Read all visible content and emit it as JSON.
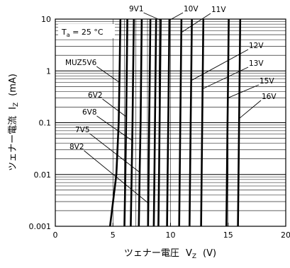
{
  "chart_data": {
    "type": "line",
    "x_axis": {
      "label": "ツェナー電圧",
      "symbol": "V",
      "symbol_sub": "Z",
      "unit": "(V)",
      "range": [
        0,
        20
      ],
      "ticks": [
        "0",
        "5",
        "10",
        "15",
        "20"
      ]
    },
    "y_axis": {
      "label": "ツェナー電流",
      "symbol": "I",
      "symbol_sub": "Z",
      "unit": "(mA)",
      "scale": "log",
      "range": [
        0.001,
        10
      ],
      "ticks": [
        "0.001",
        "0.01",
        "0.1",
        "1",
        "10"
      ]
    },
    "condition": {
      "prefix": "T",
      "sub": "a",
      "text": " = 25 °C"
    },
    "series": [
      {
        "name": "MUZ5V6",
        "points": [
          [
            4.75,
            0.001
          ],
          [
            5.3,
            0.01
          ],
          [
            5.5,
            0.1
          ],
          [
            5.58,
            1
          ],
          [
            5.65,
            10
          ]
        ]
      },
      {
        "name": "6V2",
        "points": [
          [
            6.0,
            0.001
          ],
          [
            6.08,
            0.01
          ],
          [
            6.15,
            0.1
          ],
          [
            6.2,
            1
          ],
          [
            6.25,
            10
          ]
        ]
      },
      {
        "name": "6V8",
        "points": [
          [
            6.55,
            0.001
          ],
          [
            6.63,
            0.01
          ],
          [
            6.7,
            0.1
          ],
          [
            6.76,
            1
          ],
          [
            6.82,
            10
          ]
        ]
      },
      {
        "name": "7V5",
        "points": [
          [
            7.25,
            0.001
          ],
          [
            7.32,
            0.01
          ],
          [
            7.4,
            0.1
          ],
          [
            7.45,
            1
          ],
          [
            7.5,
            10
          ]
        ]
      },
      {
        "name": "8V2",
        "points": [
          [
            8.05,
            0.001
          ],
          [
            8.1,
            0.01
          ],
          [
            8.15,
            0.1
          ],
          [
            8.2,
            1
          ],
          [
            8.25,
            10
          ]
        ]
      },
      {
        "name": "",
        "points": [
          [
            8.55,
            0.001
          ],
          [
            8.6,
            0.01
          ],
          [
            8.65,
            0.1
          ],
          [
            8.7,
            1
          ],
          [
            8.75,
            10
          ]
        ]
      },
      {
        "name": "9V1",
        "points": [
          [
            8.95,
            0.001
          ],
          [
            9.0,
            0.01
          ],
          [
            9.05,
            0.1
          ],
          [
            9.1,
            1
          ],
          [
            9.15,
            10
          ]
        ]
      },
      {
        "name": "10V",
        "points": [
          [
            9.7,
            0.001
          ],
          [
            9.75,
            0.01
          ],
          [
            9.8,
            0.1
          ],
          [
            9.85,
            1
          ],
          [
            9.9,
            10
          ]
        ]
      },
      {
        "name": "11V",
        "points": [
          [
            10.75,
            0.001
          ],
          [
            10.8,
            0.01
          ],
          [
            10.85,
            0.1
          ],
          [
            10.9,
            1
          ],
          [
            10.95,
            10
          ]
        ]
      },
      {
        "name": "12V",
        "points": [
          [
            11.65,
            0.001
          ],
          [
            11.7,
            0.01
          ],
          [
            11.75,
            0.1
          ],
          [
            11.8,
            1
          ],
          [
            11.85,
            10
          ]
        ]
      },
      {
        "name": "13V",
        "points": [
          [
            12.65,
            0.001
          ],
          [
            12.7,
            0.01
          ],
          [
            12.75,
            0.1
          ],
          [
            12.8,
            1
          ],
          [
            12.85,
            10
          ]
        ]
      },
      {
        "name": "15V",
        "points": [
          [
            14.85,
            0.001
          ],
          [
            14.9,
            0.01
          ],
          [
            14.95,
            0.1
          ],
          [
            15.0,
            1
          ],
          [
            15.05,
            10
          ]
        ]
      },
      {
        "name": "16V",
        "points": [
          [
            15.85,
            0.001
          ],
          [
            15.9,
            0.01
          ],
          [
            15.95,
            0.1
          ],
          [
            16.0,
            1
          ],
          [
            16.05,
            10
          ]
        ]
      }
    ],
    "callouts": [
      {
        "series": "MUZ5V6",
        "text": "MUZ5V6",
        "at": [
          5.55,
          0.6
        ]
      },
      {
        "series": "6V2",
        "text": "6V2",
        "at": [
          6.17,
          0.13
        ]
      },
      {
        "series": "6V8",
        "text": "6V8",
        "at": [
          6.7,
          0.045
        ]
      },
      {
        "series": "7V5",
        "text": "7V5",
        "at": [
          7.38,
          0.011
        ]
      },
      {
        "series": "8V2",
        "text": "8V2",
        "at": [
          8.12,
          0.0028
        ]
      },
      {
        "series": "9V1",
        "text": "9V1",
        "at": [
          9.1,
          9.5
        ]
      },
      {
        "series": "10V",
        "text": "10V",
        "at": [
          9.85,
          9.5
        ]
      },
      {
        "series": "11V",
        "text": "11V",
        "at": [
          10.9,
          5.5
        ]
      },
      {
        "series": "12V",
        "text": "12V",
        "at": [
          11.8,
          0.65
        ]
      },
      {
        "series": "13V",
        "text": "13V",
        "at": [
          12.8,
          0.45
        ]
      },
      {
        "series": "15V",
        "text": "15V",
        "at": [
          15.0,
          0.3
        ]
      },
      {
        "series": "16V",
        "text": "16V",
        "at": [
          15.97,
          0.12
        ]
      }
    ],
    "grid": {
      "horizontal": "minor-log",
      "vertical": "major",
      "vertical_major_step": 1
    },
    "line_color": "#000000"
  }
}
